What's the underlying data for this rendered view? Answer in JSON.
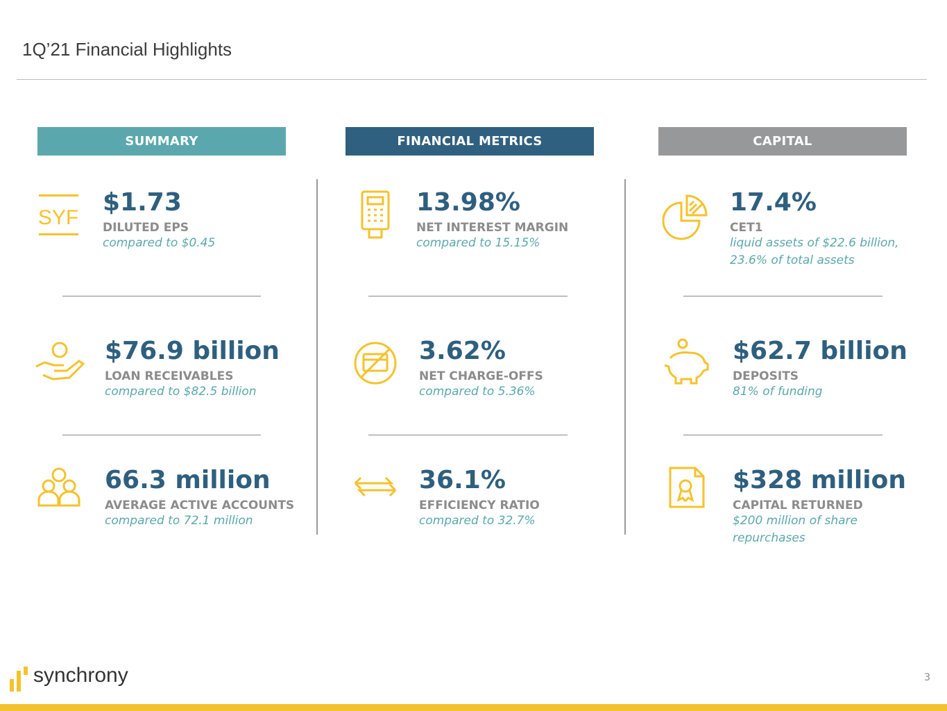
{
  "title": "1Q’21 Financial Highlights",
  "headers": {
    "summary": "SUMMARY",
    "financial": "FINANCIAL METRICS",
    "capital": "CAPITAL"
  },
  "colors": {
    "summary": "#5aa8ad",
    "financial": "#30607f",
    "capital": "#97989a",
    "accent": "#f5c22b"
  },
  "summary": [
    {
      "icon": "syf-icon",
      "icon_text": "SYF",
      "value": "$1.73",
      "label": "DILUTED EPS",
      "sub": "compared to $0.45"
    },
    {
      "icon": "hand-person-icon",
      "value": "$76.9 billion",
      "label": "LOAN RECEIVABLES",
      "sub": "compared to $82.5 billion"
    },
    {
      "icon": "group-icon",
      "value": "66.3 million",
      "label": "AVERAGE ACTIVE ACCOUNTS",
      "sub": "compared to 72.1 million"
    }
  ],
  "financial": [
    {
      "icon": "card-terminal-icon",
      "value": "13.98%",
      "label": "NET INTEREST MARGIN",
      "sub": "compared to 15.15%"
    },
    {
      "icon": "no-card-icon",
      "value": "3.62%",
      "label": "NET CHARGE-OFFS",
      "sub": "compared to 5.36%"
    },
    {
      "icon": "exchange-arrows-icon",
      "value": "36.1%",
      "label": "EFFICIENCY RATIO",
      "sub": "compared to 32.7%"
    }
  ],
  "capital": [
    {
      "icon": "pie-chart-icon",
      "value": "17.4%",
      "label": "CET1",
      "sub": "liquid assets of $22.6 billion, 23.6% of total assets"
    },
    {
      "icon": "piggy-bank-icon",
      "value": "$62.7 billion",
      "label": "DEPOSITS",
      "sub": "81% of funding"
    },
    {
      "icon": "certificate-icon",
      "value": "$328 million",
      "label": "CAPITAL RETURNED",
      "sub": "$200 million of share repurchases"
    }
  ],
  "footer": {
    "logo": "synchrony",
    "page": "3"
  }
}
